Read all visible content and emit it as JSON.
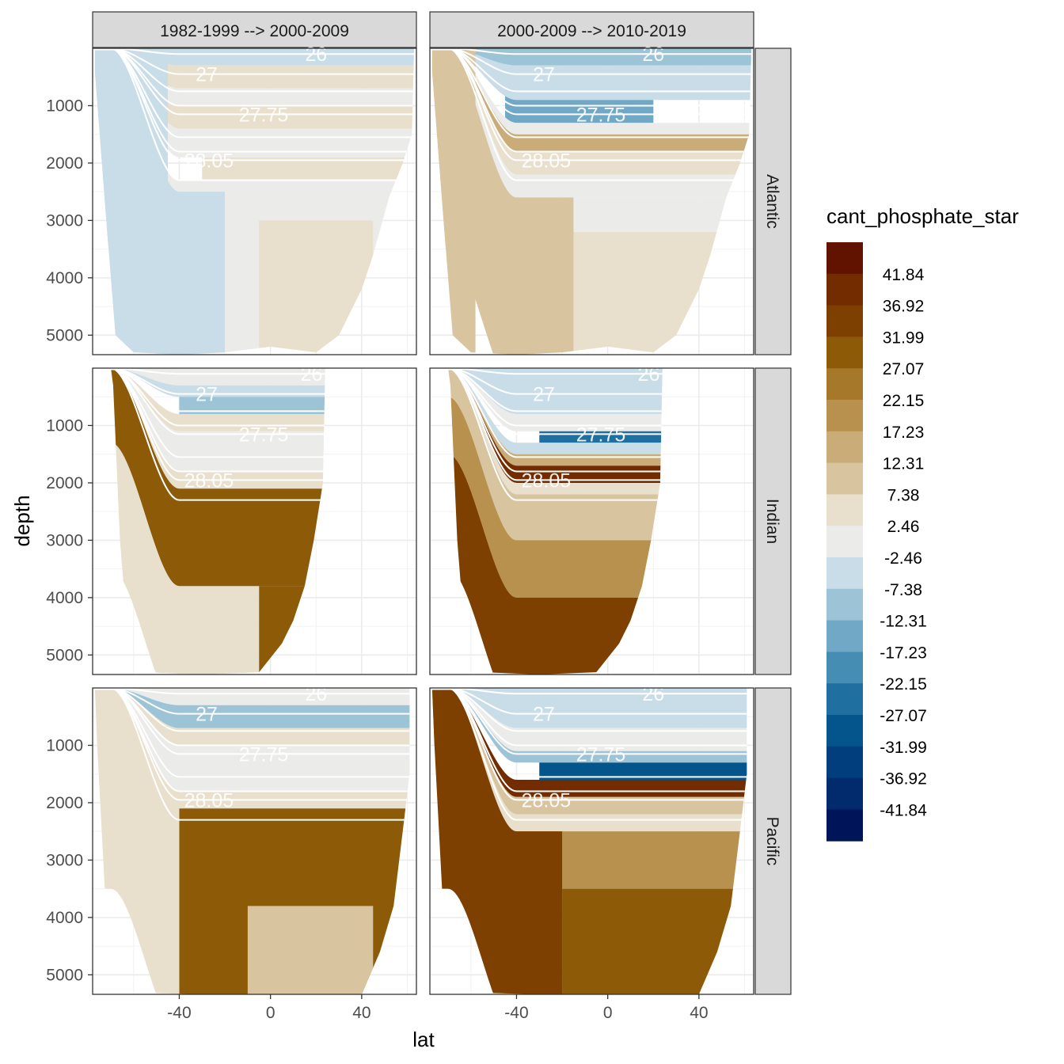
{
  "chart_data": {
    "type": "heatmap",
    "subtype": "faceted filled contour sections",
    "xlabel": "lat",
    "ylabel": "depth",
    "xlim": [
      -78,
      64
    ],
    "ylim": [
      5340,
      0
    ],
    "x_ticks": [
      -40,
      0,
      40
    ],
    "y_ticks": [
      1000,
      2000,
      3000,
      4000,
      5000
    ],
    "grid": true,
    "columns": [
      "1982-1999 --> 2000-2009",
      "2000-2009 --> 2010-2019"
    ],
    "rows": [
      "Atlantic",
      "Indian",
      "Pacific"
    ],
    "legend": {
      "title": "cant_phosphate_star",
      "placement": "right",
      "labels": [
        "41.84",
        "36.92",
        "31.99",
        "27.07",
        "22.15",
        "17.23",
        "12.31",
        "7.38",
        "2.46",
        "-2.46",
        "-7.38",
        "-12.31",
        "-17.23",
        "-22.15",
        "-27.07",
        "-31.99",
        "-36.92",
        "-41.84"
      ],
      "colors": [
        "#611300",
        "#722c00",
        "#7d4000",
        "#8d5a08",
        "#a5782a",
        "#b8914f",
        "#c9ac78",
        "#d8c5a0",
        "#e8dfcc",
        "#ebecea",
        "#c9dde8",
        "#9dc3d7",
        "#70a8c5",
        "#458db2",
        "#1f70a0",
        "#04558b",
        "#013e7d",
        "#022b6d",
        "#001459"
      ]
    },
    "isopycnals": [
      {
        "label": "26",
        "depth": 100,
        "lat": 20
      },
      {
        "label": "27",
        "depth": 450,
        "lat": -28
      },
      {
        "label": "",
        "depth": 750
      },
      {
        "label": "",
        "depth": 1000
      },
      {
        "label": "27.75",
        "depth": 1150,
        "lat": -3
      },
      {
        "label": "",
        "depth": 1550
      },
      {
        "label": "",
        "depth": 1800
      },
      {
        "label": "28.05",
        "depth": 1950,
        "lat": -27
      },
      {
        "label": "",
        "depth": 2300
      }
    ],
    "basins": {
      "Atlantic": {
        "bottom": [
          [
            -77,
            0
          ],
          [
            -77,
            400
          ],
          [
            -72,
            3000
          ],
          [
            -68,
            5000
          ],
          [
            -60,
            5300
          ],
          [
            -40,
            5350
          ],
          [
            -20,
            5300
          ],
          [
            0,
            5200
          ],
          [
            20,
            5300
          ],
          [
            30,
            5000
          ],
          [
            40,
            4200
          ],
          [
            45,
            3600
          ],
          [
            52,
            2600
          ],
          [
            58,
            2000
          ],
          [
            62,
            1500
          ],
          [
            63,
            0
          ]
        ]
      },
      "Indian": {
        "bottom": [
          [
            -70,
            0
          ],
          [
            -69,
            300
          ],
          [
            -66,
            3000
          ],
          [
            -62,
            5000
          ],
          [
            -55,
            5300
          ],
          [
            -30,
            5350
          ],
          [
            -5,
            5300
          ],
          [
            5,
            4800
          ],
          [
            10,
            4400
          ],
          [
            15,
            3800
          ],
          [
            19,
            3000
          ],
          [
            23,
            2000
          ],
          [
            24,
            0
          ]
        ]
      },
      "Pacific": {
        "bottom": [
          [
            -77,
            0
          ],
          [
            -76,
            1000
          ],
          [
            -72,
            4000
          ],
          [
            -68,
            5300
          ],
          [
            -30,
            5350
          ],
          [
            0,
            5350
          ],
          [
            40,
            5350
          ],
          [
            48,
            4600
          ],
          [
            54,
            3800
          ],
          [
            58,
            2500
          ],
          [
            61,
            1500
          ],
          [
            61,
            0
          ]
        ]
      }
    },
    "panels": [
      {
        "row": "Atlantic",
        "col": 0,
        "bands": [
          [
            0,
            300,
            -5
          ],
          [
            300,
            700,
            5
          ],
          [
            700,
            1000,
            0
          ],
          [
            1000,
            1400,
            5
          ],
          [
            1400,
            1900,
            0
          ],
          [
            1900,
            2300,
            5,
            -30,
            70
          ],
          [
            2300,
            6000,
            0
          ],
          [
            0,
            6000,
            -5,
            -80,
            -45,
            1
          ],
          [
            2500,
            6000,
            -5,
            -80,
            -20
          ],
          [
            3000,
            6000,
            5,
            -5,
            45
          ]
        ]
      },
      {
        "row": "Atlantic",
        "col": 1,
        "bands": [
          [
            0,
            300,
            -10
          ],
          [
            300,
            900,
            -5
          ],
          [
            900,
            1300,
            -15,
            -45,
            20
          ],
          [
            1300,
            1500,
            0
          ],
          [
            1500,
            1800,
            15
          ],
          [
            1800,
            2200,
            7
          ],
          [
            2200,
            2600,
            0
          ],
          [
            2600,
            6000,
            10,
            -80,
            -15
          ],
          [
            2600,
            3200,
            0,
            -15,
            70
          ],
          [
            3200,
            6000,
            5,
            -15,
            70
          ],
          [
            0,
            6000,
            10,
            -78,
            -58,
            1
          ]
        ]
      },
      {
        "row": "Indian",
        "col": 0,
        "bands": [
          [
            0,
            300,
            0
          ],
          [
            300,
            500,
            -5
          ],
          [
            500,
            800,
            -10,
            -40,
            30
          ],
          [
            800,
            1100,
            5
          ],
          [
            1100,
            1800,
            0
          ],
          [
            1800,
            2100,
            7
          ],
          [
            2100,
            3800,
            30
          ],
          [
            3800,
            6000,
            5,
            -80,
            -5
          ],
          [
            3800,
            6000,
            30,
            -5,
            30
          ]
        ]
      },
      {
        "row": "Indian",
        "col": 1,
        "bands": [
          [
            0,
            800,
            -5
          ],
          [
            800,
            1100,
            0
          ],
          [
            1100,
            1300,
            -25,
            -30,
            30
          ],
          [
            1300,
            1500,
            -5
          ],
          [
            1500,
            1700,
            15
          ],
          [
            1700,
            2000,
            40
          ],
          [
            2000,
            2200,
            5
          ],
          [
            2200,
            3000,
            12
          ],
          [
            3000,
            4000,
            20
          ],
          [
            4000,
            6000,
            35
          ]
        ]
      },
      {
        "row": "Pacific",
        "col": 0,
        "bands": [
          [
            0,
            300,
            0
          ],
          [
            300,
            700,
            -10
          ],
          [
            700,
            1000,
            5
          ],
          [
            1000,
            1800,
            0
          ],
          [
            1800,
            2100,
            5
          ],
          [
            2100,
            6000,
            30,
            -40,
            70
          ],
          [
            2100,
            6000,
            7,
            -80,
            -40
          ],
          [
            3800,
            6000,
            10,
            -10,
            45
          ]
        ]
      },
      {
        "row": "Pacific",
        "col": 1,
        "bands": [
          [
            0,
            700,
            -5
          ],
          [
            700,
            1100,
            0
          ],
          [
            1100,
            1300,
            -10
          ],
          [
            1300,
            1600,
            -30,
            -30,
            70
          ],
          [
            1600,
            1900,
            40
          ],
          [
            1900,
            2200,
            12
          ],
          [
            2200,
            2500,
            7
          ],
          [
            2500,
            3500,
            20
          ],
          [
            3500,
            6000,
            30,
            -20,
            70
          ],
          [
            2500,
            6000,
            35,
            -80,
            -20
          ]
        ]
      }
    ]
  }
}
